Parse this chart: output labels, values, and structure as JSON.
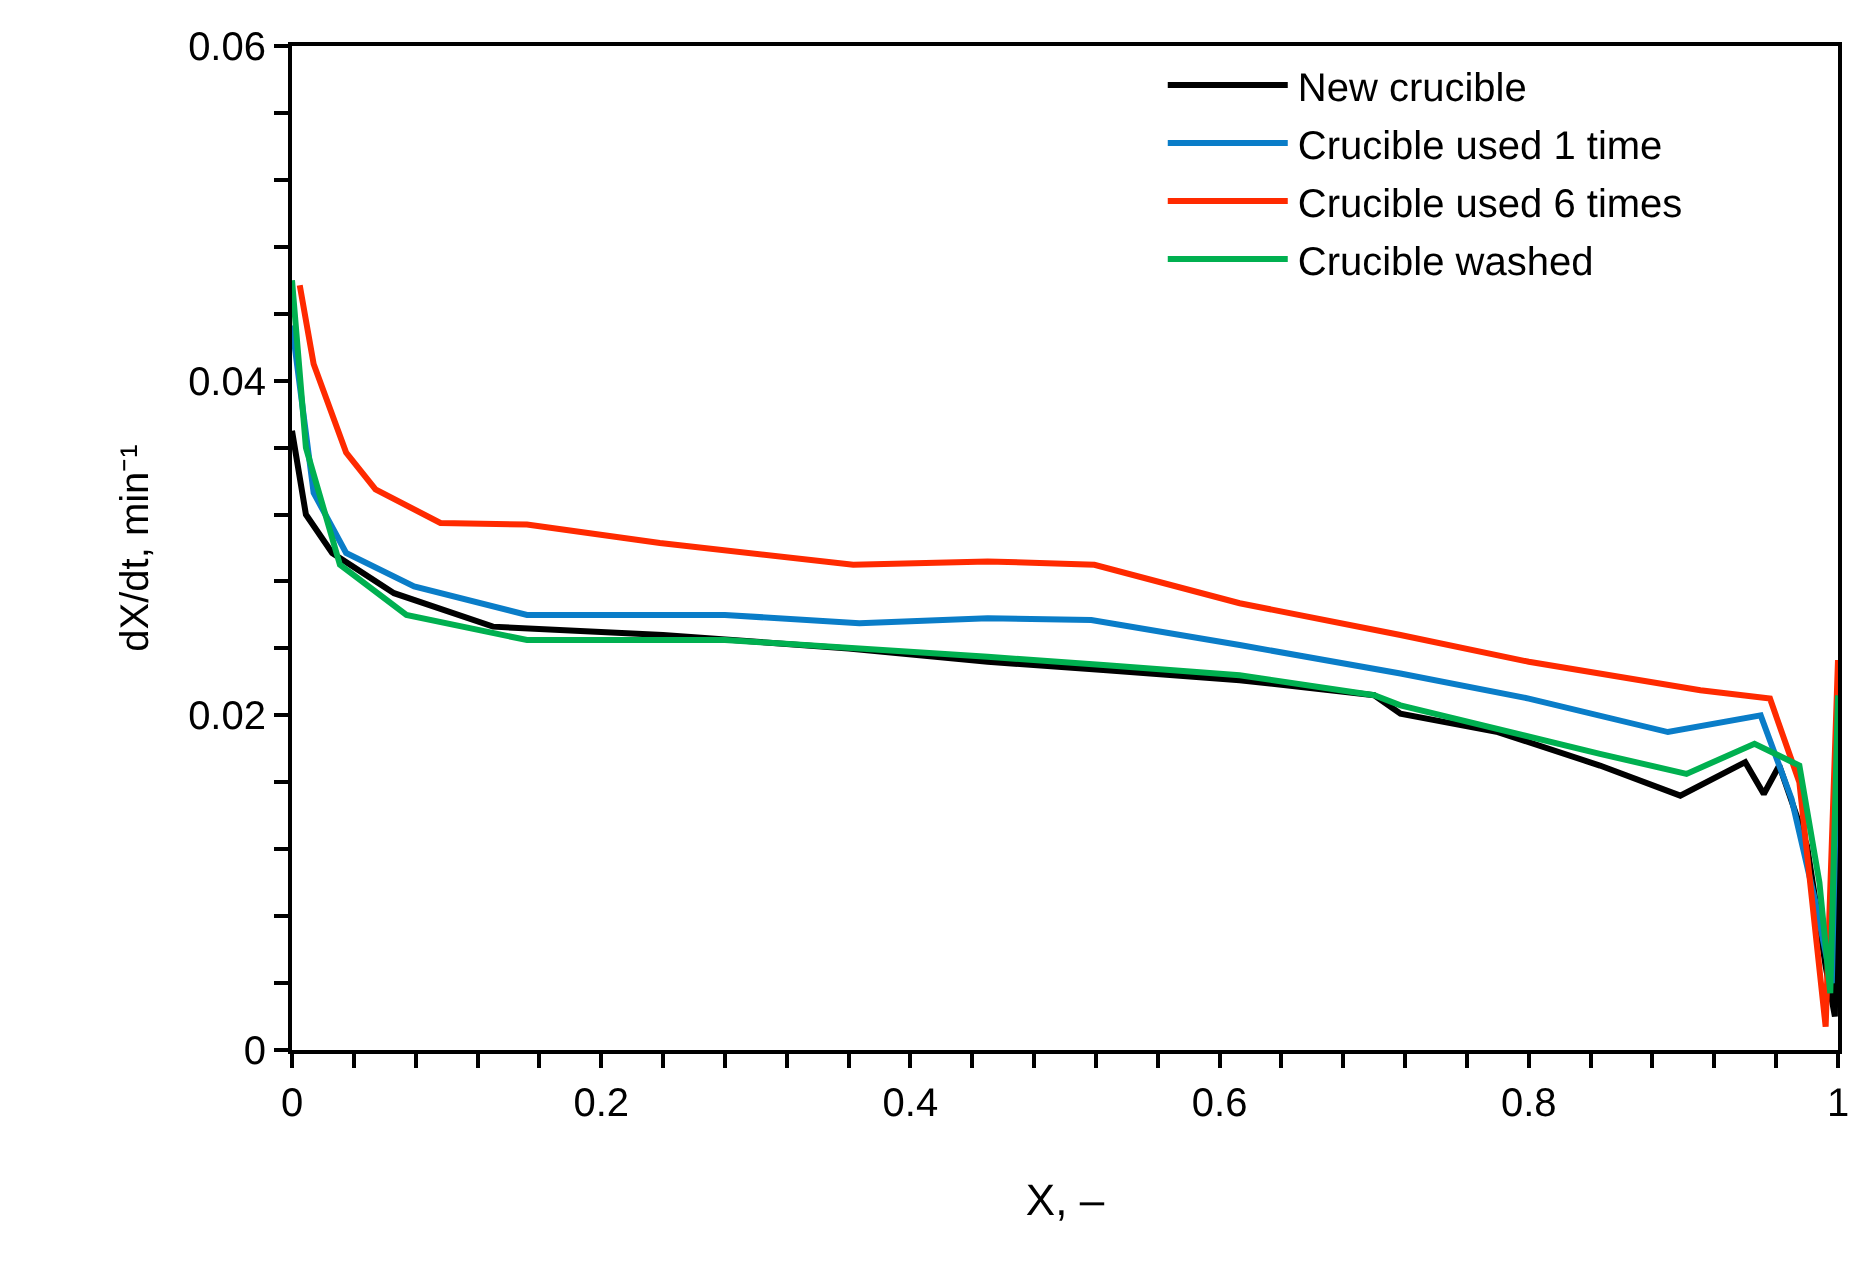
{
  "chart_data": {
    "type": "line",
    "xlabel": "X, –",
    "ylabel": "dX/dt, min⁻¹",
    "legend": "top right",
    "grid": false,
    "marker": "none",
    "line_style": "solid",
    "xlim": [
      0,
      1
    ],
    "ylim": [
      0,
      0.06
    ],
    "xticks": [
      0,
      {
        "value": 0.04,
        "label": null
      },
      {
        "value": 0.08,
        "label": null
      },
      {
        "value": 0.12,
        "label": null
      },
      {
        "value": 0.16,
        "label": null
      },
      0.2,
      {
        "value": 0.24,
        "label": null
      },
      {
        "value": 0.28,
        "label": null
      },
      {
        "value": 0.32,
        "label": null
      },
      {
        "value": 0.36,
        "label": null
      },
      0.4,
      {
        "value": 0.44,
        "label": null
      },
      {
        "value": 0.48,
        "label": null
      },
      {
        "value": 0.52,
        "label": null
      },
      {
        "value": 0.56,
        "label": null
      },
      0.6,
      {
        "value": 0.64,
        "label": null
      },
      {
        "value": 0.68,
        "label": null
      },
      {
        "value": 0.72,
        "label": null
      },
      {
        "value": 0.76,
        "label": null
      },
      0.8,
      {
        "value": 0.84,
        "label": null
      },
      {
        "value": 0.88,
        "label": null
      },
      {
        "value": 0.92,
        "label": null
      },
      {
        "value": 0.96,
        "label": null
      },
      1
    ],
    "yticks": [
      0,
      {
        "value": 0.004,
        "label": null
      },
      {
        "value": 0.008,
        "label": null
      },
      {
        "value": 0.012,
        "label": null
      },
      {
        "value": 0.016,
        "label": null
      },
      0.02,
      {
        "value": 0.024,
        "label": null
      },
      {
        "value": 0.028,
        "label": null
      },
      {
        "value": 0.032,
        "label": null
      },
      {
        "value": 0.036,
        "label": null
      },
      0.04,
      {
        "value": 0.044,
        "label": null
      },
      {
        "value": 0.048,
        "label": null
      },
      {
        "value": 0.052,
        "label": null
      },
      {
        "value": 0.056,
        "label": null
      },
      0.06
    ],
    "series": [
      {
        "name": "New crucible",
        "color": "#000000",
        "x": [
          0,
          0.009,
          0.026,
          0.066,
          0.13,
          0.24,
          0.36,
          0.45,
          0.527,
          0.613,
          0.7,
          0.717,
          0.78,
          0.846,
          0.898,
          0.94,
          0.952,
          0.962,
          0.98,
          0.992,
          0.998,
          1
        ],
        "values": [
          0.037,
          0.032,
          0.0297,
          0.0273,
          0.0253,
          0.0248,
          0.024,
          0.0232,
          0.0227,
          0.0221,
          0.0212,
          0.0201,
          0.019,
          0.017,
          0.0152,
          0.0172,
          0.0153,
          0.017,
          0.0122,
          0.005,
          0.002,
          0.021
        ]
      },
      {
        "name": "Crucible used 1 time",
        "color": "#0a7dc8",
        "x": [
          0,
          0.014,
          0.035,
          0.079,
          0.152,
          0.28,
          0.367,
          0.45,
          0.517,
          0.613,
          0.717,
          0.8,
          0.89,
          0.95,
          0.97,
          0.985,
          0.996,
          1
        ],
        "values": [
          0.0433,
          0.0333,
          0.0297,
          0.0277,
          0.026,
          0.026,
          0.0255,
          0.0258,
          0.0257,
          0.0242,
          0.0225,
          0.021,
          0.019,
          0.02,
          0.015,
          0.009,
          0.004,
          0.02
        ]
      },
      {
        "name": "Crucible used 6 times",
        "color": "#ff2a00",
        "x": [
          0.005,
          0.014,
          0.035,
          0.054,
          0.096,
          0.152,
          0.238,
          0.363,
          0.45,
          0.519,
          0.613,
          0.717,
          0.8,
          0.911,
          0.956,
          0.975,
          0.992,
          1
        ],
        "values": [
          0.0457,
          0.041,
          0.0357,
          0.0335,
          0.0315,
          0.0314,
          0.0303,
          0.029,
          0.0292,
          0.029,
          0.0267,
          0.0248,
          0.0232,
          0.0215,
          0.021,
          0.016,
          0.0014,
          0.0233
        ]
      },
      {
        "name": "Crucible washed",
        "color": "#00b050",
        "x": [
          0,
          0.009,
          0.031,
          0.074,
          0.152,
          0.28,
          0.367,
          0.45,
          0.527,
          0.613,
          0.7,
          0.717,
          0.846,
          0.902,
          0.946,
          0.975,
          0.988,
          0.995,
          1
        ],
        "values": [
          0.046,
          0.036,
          0.029,
          0.026,
          0.0245,
          0.0245,
          0.024,
          0.0235,
          0.023,
          0.0224,
          0.0212,
          0.0206,
          0.0177,
          0.0165,
          0.0183,
          0.017,
          0.01,
          0.0034,
          0.0212
        ]
      }
    ]
  }
}
